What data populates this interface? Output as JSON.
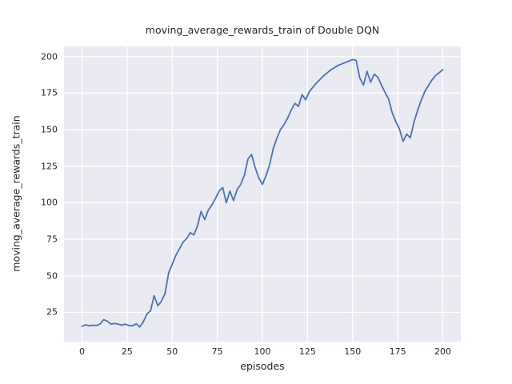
{
  "chart_data": {
    "type": "line",
    "title": "moving_average_rewards_train of Double DQN",
    "xlabel": "episodes",
    "ylabel": "moving_average_rewards_train",
    "xlim": [
      -10,
      210
    ],
    "ylim": [
      5,
      207
    ],
    "x_ticks": [
      0,
      25,
      50,
      75,
      100,
      125,
      150,
      175,
      200
    ],
    "y_ticks": [
      25,
      50,
      75,
      100,
      125,
      150,
      175,
      200
    ],
    "grid": true,
    "legend": "none",
    "colors": {
      "line": "#4c72b0",
      "plot_bg": "#eaeaf2",
      "grid": "#ffffff",
      "text": "#262626",
      "figure_bg": "#ffffff"
    },
    "x": [
      0,
      2,
      4,
      6,
      8,
      10,
      12,
      14,
      16,
      18,
      20,
      22,
      24,
      26,
      28,
      30,
      32,
      34,
      36,
      38,
      40,
      42,
      44,
      46,
      48,
      50,
      52,
      54,
      56,
      58,
      60,
      62,
      64,
      66,
      68,
      70,
      72,
      74,
      76,
      78,
      80,
      82,
      84,
      86,
      88,
      90,
      92,
      94,
      96,
      98,
      100,
      102,
      104,
      106,
      108,
      110,
      112,
      114,
      116,
      118,
      120,
      122,
      124,
      126,
      128,
      130,
      132,
      134,
      136,
      138,
      140,
      142,
      144,
      146,
      148,
      150,
      152,
      154,
      156,
      158,
      160,
      162,
      164,
      166,
      168,
      170,
      172,
      174,
      176,
      178,
      180,
      182,
      184,
      186,
      188,
      190,
      192,
      194,
      196,
      198,
      200
    ],
    "values": [
      15.5,
      16.5,
      15.8,
      16.2,
      16.0,
      17.0,
      20.0,
      19.0,
      17.0,
      17.5,
      17.0,
      16.3,
      17.0,
      16.0,
      15.8,
      17.2,
      15.0,
      18.5,
      24.0,
      26.0,
      36.5,
      29.5,
      32.5,
      38.0,
      52.0,
      58.0,
      64.0,
      68.5,
      73.0,
      75.5,
      79.5,
      78.0,
      84.0,
      94.0,
      88.5,
      95.0,
      98.5,
      103.0,
      108.0,
      110.5,
      100.0,
      108.0,
      101.5,
      109.0,
      112.5,
      119.0,
      130.0,
      133.0,
      124.0,
      117.0,
      112.5,
      118.5,
      126.0,
      137.0,
      144.0,
      150.0,
      153.5,
      158.0,
      163.5,
      168.0,
      166.0,
      174.0,
      170.5,
      176.0,
      179.0,
      182.0,
      184.5,
      187.0,
      189.0,
      191.0,
      192.5,
      194.0,
      195.0,
      196.0,
      197.0,
      198.0,
      197.5,
      185.5,
      180.5,
      190.0,
      182.5,
      188.0,
      186.0,
      180.5,
      175.5,
      171.0,
      161.5,
      155.5,
      150.5,
      142.0,
      147.0,
      144.5,
      155.0,
      163.0,
      170.0,
      176.0,
      180.0,
      184.0,
      187.0,
      189.0,
      191.0
    ]
  }
}
